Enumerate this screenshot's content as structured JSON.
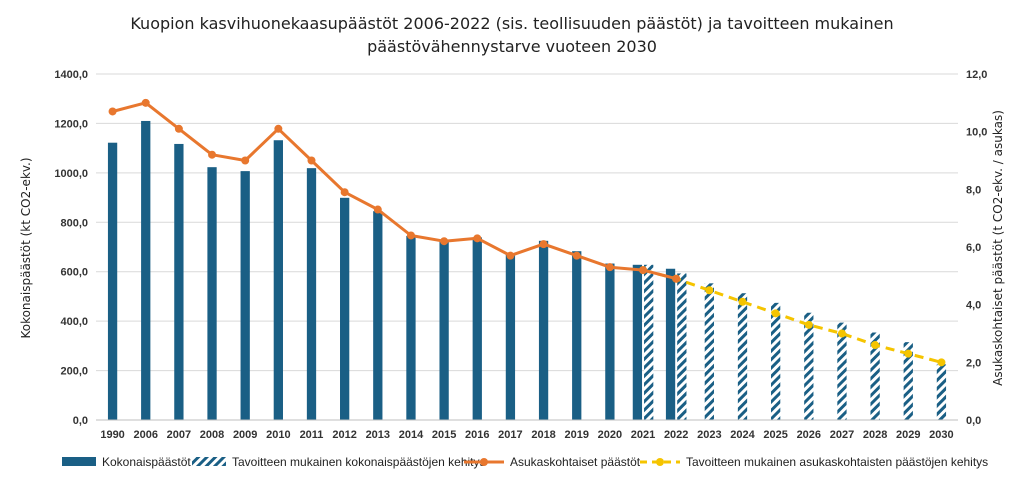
{
  "chart_data": {
    "type": "bar",
    "title_line1": "Kuopion kasvihuonekaasupäästöt 2006-2022 (sis. teollisuuden päästöt) ja tavoitteen mukainen",
    "title_line2": "päästövähennystarve vuoteen 2030",
    "ylabel": "Kokonaispäästöt (kt CO2-ekv.)",
    "y2label": "Asukaskohtaiset päästöt (t CO2-ekv. / asukas)",
    "ylim": [
      0,
      1400
    ],
    "y2lim": [
      0,
      12
    ],
    "y_ticks": [
      "0,0",
      "200,0",
      "400,0",
      "600,0",
      "800,0",
      "1000,0",
      "1200,0",
      "1400,0"
    ],
    "y2_ticks": [
      "0,0",
      "2,0",
      "4,0",
      "6,0",
      "8,0",
      "10,0",
      "12,0"
    ],
    "categories": [
      "1990",
      "2006",
      "2007",
      "2008",
      "2009",
      "2010",
      "2011",
      "2012",
      "2013",
      "2014",
      "2015",
      "2016",
      "2017",
      "2018",
      "2019",
      "2020",
      "2021",
      "2022",
      "2023",
      "2024",
      "2025",
      "2026",
      "2027",
      "2028",
      "2029",
      "2030"
    ],
    "series": [
      {
        "name": "Kokonaispäästöt",
        "kind": "bar",
        "color": "#1a5f85",
        "values": [
          1122,
          1210,
          1117,
          1023,
          1007,
          1132,
          1019,
          899,
          845,
          745,
          727,
          739,
          673,
          725,
          683,
          633,
          628,
          612,
          null,
          null,
          null,
          null,
          null,
          null,
          null,
          null
        ]
      },
      {
        "name": "Tavoitteen mukainen kokonaispäästöjen kehitys",
        "kind": "bar-hatched",
        "color": "#1a5f85",
        "values": [
          null,
          null,
          null,
          null,
          null,
          null,
          null,
          null,
          null,
          null,
          null,
          null,
          null,
          null,
          null,
          null,
          628,
          593,
          553,
          513,
          474,
          434,
          394,
          354,
          315,
          225
        ]
      },
      {
        "name": "Asukaskohtaiset päästöt",
        "kind": "line",
        "axis": "right",
        "color": "#e8772e",
        "values": [
          10.7,
          11.0,
          10.1,
          9.2,
          9.0,
          10.1,
          9.0,
          7.9,
          7.3,
          6.4,
          6.2,
          6.3,
          5.7,
          6.1,
          5.7,
          5.3,
          5.2,
          4.9,
          null,
          null,
          null,
          null,
          null,
          null,
          null,
          null
        ]
      },
      {
        "name": "Tavoitteen mukainen asukaskohtaisten päästöjen kehitys",
        "kind": "line-dashed",
        "axis": "right",
        "color": "#f5c400",
        "values": [
          null,
          null,
          null,
          null,
          null,
          null,
          null,
          null,
          null,
          null,
          null,
          null,
          null,
          null,
          null,
          null,
          5.2,
          4.9,
          4.5,
          4.1,
          3.7,
          3.3,
          3.0,
          2.6,
          2.3,
          2.0
        ]
      }
    ],
    "legend_position": "bottom",
    "grid": true
  }
}
